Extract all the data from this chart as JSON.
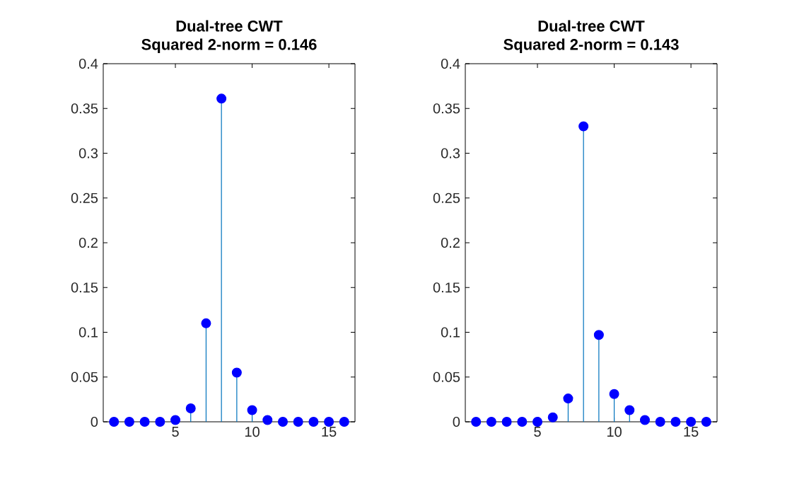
{
  "chart_data": [
    {
      "type": "lollipop",
      "title": "Dual-tree CWT",
      "subtitle": "Squared 2-norm = 0.146",
      "x": [
        1,
        2,
        3,
        4,
        5,
        6,
        7,
        8,
        9,
        10,
        11,
        12,
        13,
        14,
        15,
        16
      ],
      "series": [
        {
          "color": "#0000ff",
          "values": [
            0,
            0,
            0,
            0,
            0.002,
            0.015,
            0.11,
            0.361,
            0.055,
            0.013,
            0.002,
            0,
            0,
            0,
            0,
            0
          ]
        }
      ],
      "xlim": [
        0.3,
        16.7
      ],
      "ylim": [
        0,
        0.4
      ],
      "xticks": [
        5,
        10,
        15
      ],
      "yticks": [
        0,
        0.05,
        0.1,
        0.15,
        0.2,
        0.25,
        0.3,
        0.35,
        0.4
      ],
      "marker": "circle"
    },
    {
      "type": "lollipop",
      "title": "Dual-tree CWT",
      "subtitle": "Squared 2-norm = 0.143",
      "x": [
        1,
        2,
        3,
        4,
        5,
        6,
        7,
        8,
        9,
        10,
        11,
        12,
        13,
        14,
        15,
        16
      ],
      "series": [
        {
          "color": "#0000ff",
          "values": [
            0,
            0,
            0,
            0,
            0,
            0.005,
            0.026,
            0.33,
            0.097,
            0.031,
            0.013,
            0.002,
            0,
            0,
            0,
            0
          ]
        }
      ],
      "xlim": [
        0.3,
        16.7
      ],
      "ylim": [
        0,
        0.4
      ],
      "xticks": [
        5,
        10,
        15
      ],
      "yticks": [
        0,
        0.05,
        0.1,
        0.15,
        0.2,
        0.25,
        0.3,
        0.35,
        0.4
      ],
      "marker": "circle"
    }
  ]
}
